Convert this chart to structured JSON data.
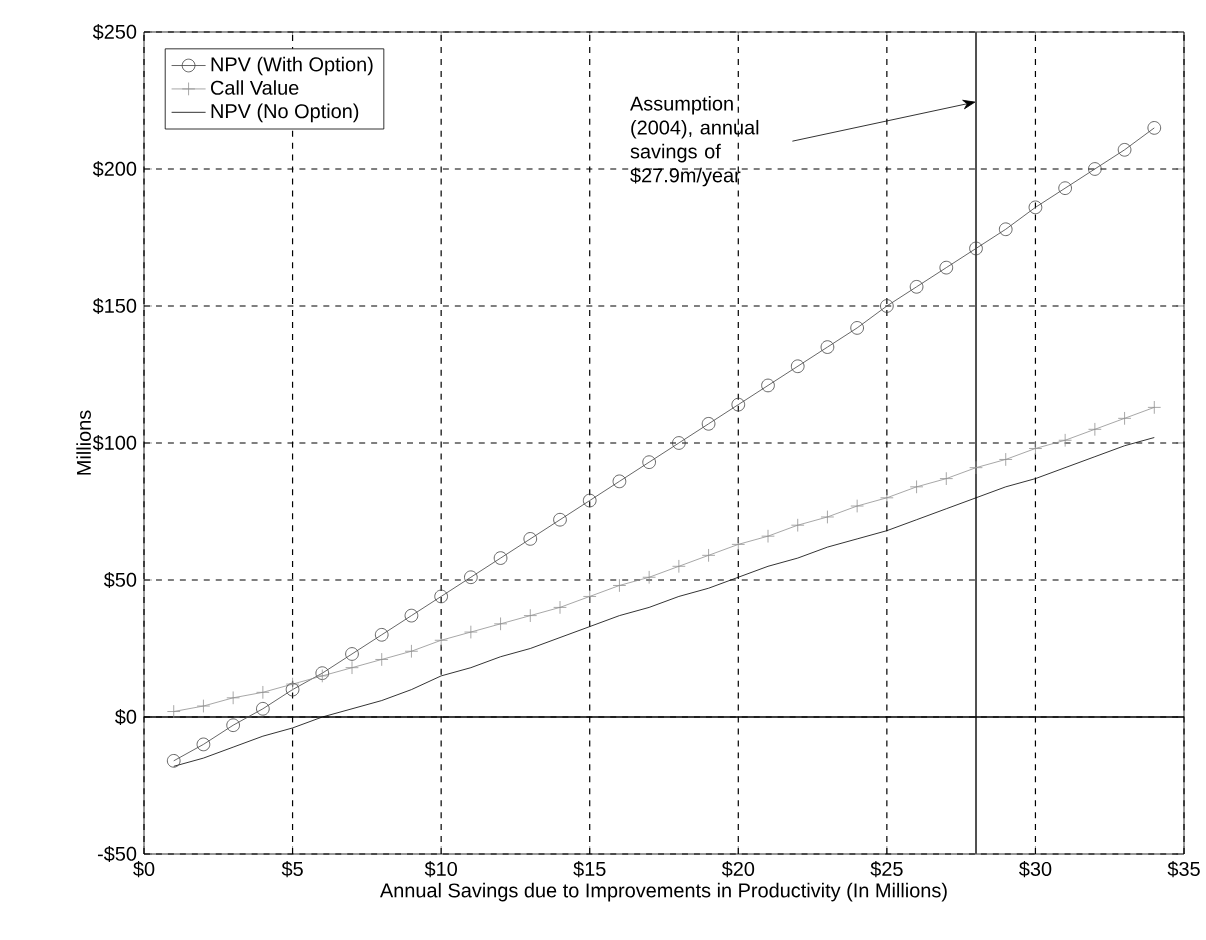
{
  "chart_data": {
    "type": "line",
    "xlabel": "Annual Savings due to Improvements in Productivity (In Millions)",
    "ylabel": "Millions",
    "x": [
      1,
      2,
      3,
      4,
      5,
      6,
      7,
      8,
      9,
      10,
      11,
      12,
      13,
      14,
      15,
      16,
      17,
      18,
      19,
      20,
      21,
      22,
      23,
      24,
      25,
      26,
      27,
      28,
      29,
      30,
      31,
      32,
      33,
      34
    ],
    "series": [
      {
        "name": "NPV (With Option)",
        "color": "#404040",
        "marker": "circle",
        "values": [
          -16,
          -10,
          -3,
          3,
          10,
          16,
          23,
          30,
          37,
          44,
          51,
          58,
          65,
          72,
          79,
          86,
          93,
          100,
          107,
          114,
          121,
          128,
          135,
          142,
          150,
          157,
          164,
          171,
          178,
          186,
          193,
          200,
          207,
          215
        ]
      },
      {
        "name": "Call Value",
        "color": "#909090",
        "marker": "cross",
        "values": [
          2,
          4,
          7,
          9,
          12,
          15,
          18,
          21,
          24,
          28,
          31,
          34,
          37,
          40,
          44,
          48,
          51,
          55,
          59,
          63,
          66,
          70,
          73,
          77,
          80,
          84,
          87,
          91,
          94,
          98,
          101,
          105,
          109,
          113
        ]
      },
      {
        "name": "NPV (No Option)",
        "color": "#000000",
        "marker": "none",
        "values": [
          -18,
          -15,
          -11,
          -7,
          -4,
          0,
          3,
          6,
          10,
          15,
          18,
          22,
          25,
          29,
          33,
          37,
          40,
          44,
          47,
          51,
          55,
          58,
          62,
          65,
          68,
          72,
          76,
          80,
          84,
          87,
          91,
          95,
          99,
          102
        ]
      }
    ],
    "xlim": [
      0,
      35
    ],
    "xticks": [
      {
        "value": 0,
        "label": "$0"
      },
      {
        "value": 5,
        "label": "$5"
      },
      {
        "value": 10,
        "label": "$10"
      },
      {
        "value": 15,
        "label": "$15"
      },
      {
        "value": 20,
        "label": "$20"
      },
      {
        "value": 25,
        "label": "$25"
      },
      {
        "value": 30,
        "label": "$30"
      },
      {
        "value": 35,
        "label": "$35"
      }
    ],
    "ylim": [
      -50,
      250
    ],
    "yticks": [
      {
        "value": -50,
        "label": "-$50"
      },
      {
        "value": 0,
        "label": "$0"
      },
      {
        "value": 50,
        "label": "$50"
      },
      {
        "value": 100,
        "label": "$100"
      },
      {
        "value": 150,
        "label": "$150"
      },
      {
        "value": 200,
        "label": "$200"
      },
      {
        "value": 250,
        "label": "$250"
      }
    ],
    "ref_lines": [
      {
        "axis": "x",
        "value": 28,
        "color": "#505050"
      },
      {
        "axis": "y",
        "value": 0,
        "color": "#000000"
      }
    ],
    "annotations": [
      "Assumption (2004), annual savings of $27.9m/year"
    ],
    "grid": true,
    "legend": "top left",
    "line_style": "solid"
  }
}
